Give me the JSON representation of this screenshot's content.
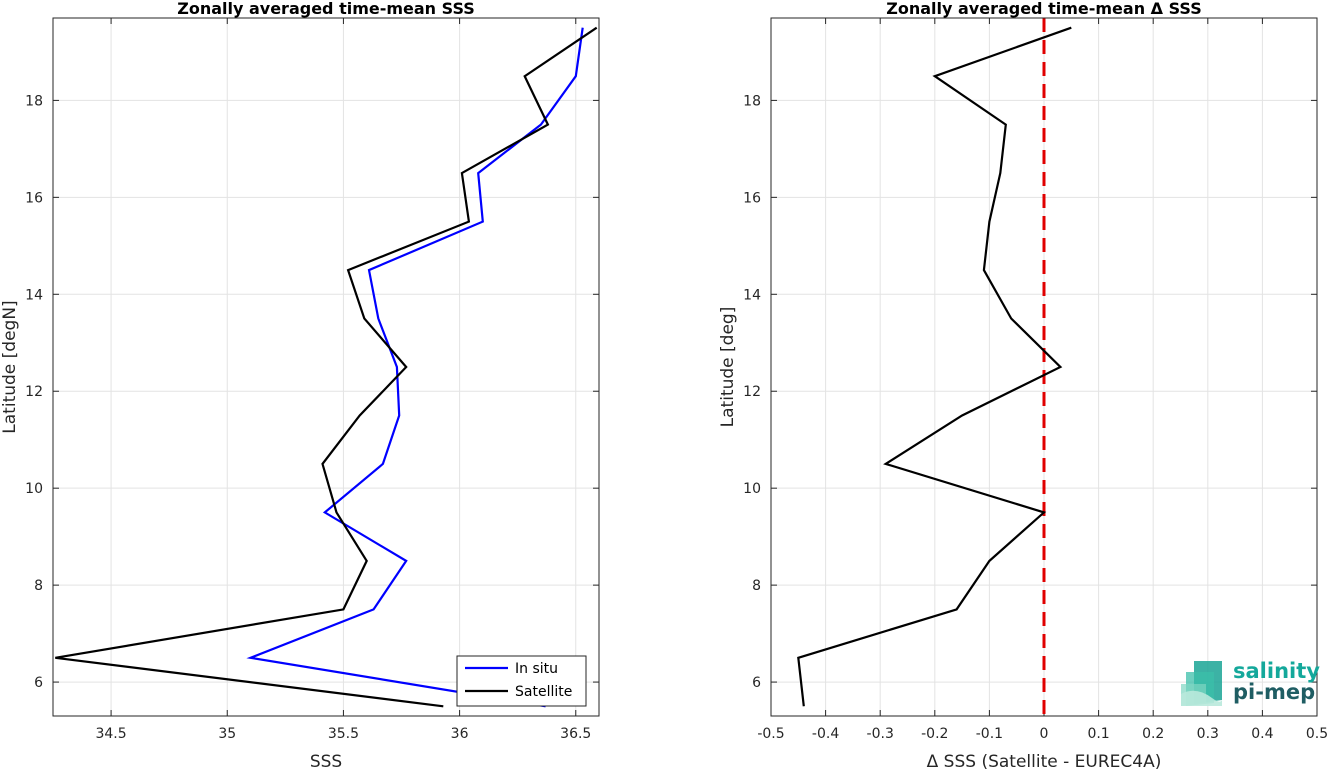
{
  "chart_data": [
    {
      "type": "line",
      "title": "Zonally averaged time-mean SSS",
      "xlabel": "SSS",
      "ylabel": "Latitude [degN]",
      "xlim": [
        34.25,
        36.6
      ],
      "ylim": [
        5.3,
        19.7
      ],
      "xticks": [
        34.5,
        35,
        35.5,
        36,
        36.5
      ],
      "xtick_labels": [
        "34.5",
        "35",
        "35.5",
        "36",
        "36.5"
      ],
      "yticks": [
        6,
        8,
        10,
        12,
        14,
        16,
        18
      ],
      "ytick_labels": [
        "6",
        "8",
        "10",
        "12",
        "14",
        "16",
        "18"
      ],
      "grid": true,
      "legend_position": "bottom-right",
      "series": [
        {
          "name": "In situ",
          "color": "#0000ff",
          "x": [
            36.37,
            35.1,
            35.63,
            35.77,
            35.42,
            35.67,
            35.74,
            35.73,
            35.65,
            35.61,
            36.1,
            36.08,
            36.35,
            36.5,
            36.53
          ],
          "y": [
            5.5,
            6.5,
            7.5,
            8.5,
            9.5,
            10.5,
            11.5,
            12.5,
            13.5,
            14.5,
            15.5,
            16.5,
            17.5,
            18.5,
            19.5
          ]
        },
        {
          "name": "Satellite",
          "color": "#000000",
          "x": [
            35.93,
            34.26,
            35.5,
            35.6,
            35.47,
            35.41,
            35.57,
            35.77,
            35.59,
            35.52,
            36.04,
            36.01,
            36.38,
            36.28,
            36.59
          ],
          "y": [
            5.5,
            6.5,
            7.5,
            8.5,
            9.5,
            10.5,
            11.5,
            12.5,
            13.5,
            14.5,
            15.5,
            16.5,
            17.5,
            18.5,
            19.5
          ]
        }
      ]
    },
    {
      "type": "line",
      "title": "Zonally averaged time-mean Δ SSS",
      "xlabel": "Δ SSS (Satellite - EUREC4A)",
      "ylabel": "Latitude [deg]",
      "xlim": [
        -0.5,
        0.5
      ],
      "ylim": [
        5.3,
        19.7
      ],
      "xticks": [
        -0.5,
        -0.4,
        -0.3,
        -0.2,
        -0.1,
        0,
        0.1,
        0.2,
        0.3,
        0.4,
        0.5
      ],
      "xtick_labels": [
        "-0.5",
        "-0.4",
        "-0.3",
        "-0.2",
        "-0.1",
        "0",
        "0.1",
        "0.2",
        "0.3",
        "0.4",
        "0.5"
      ],
      "yticks": [
        6,
        8,
        10,
        12,
        14,
        16,
        18
      ],
      "ytick_labels": [
        "6",
        "8",
        "10",
        "12",
        "14",
        "16",
        "18"
      ],
      "grid": true,
      "reference_line": {
        "x": 0,
        "color": "#e00000",
        "style": "dashed"
      },
      "series": [
        {
          "color": "#000000",
          "x": [
            -0.44,
            -0.45,
            -0.16,
            -0.1,
            0.0,
            -0.29,
            -0.15,
            0.03,
            -0.06,
            -0.11,
            -0.1,
            -0.08,
            -0.07,
            -0.2,
            0.05
          ],
          "y": [
            5.5,
            6.5,
            7.5,
            8.5,
            9.5,
            10.5,
            11.5,
            12.5,
            13.5,
            14.5,
            15.5,
            16.5,
            17.5,
            18.5,
            19.5
          ]
        }
      ]
    }
  ],
  "logo": {
    "line1": "salinity",
    "line2": "pi-mep",
    "color1": "#14a89b",
    "color2": "#1f5d63"
  }
}
